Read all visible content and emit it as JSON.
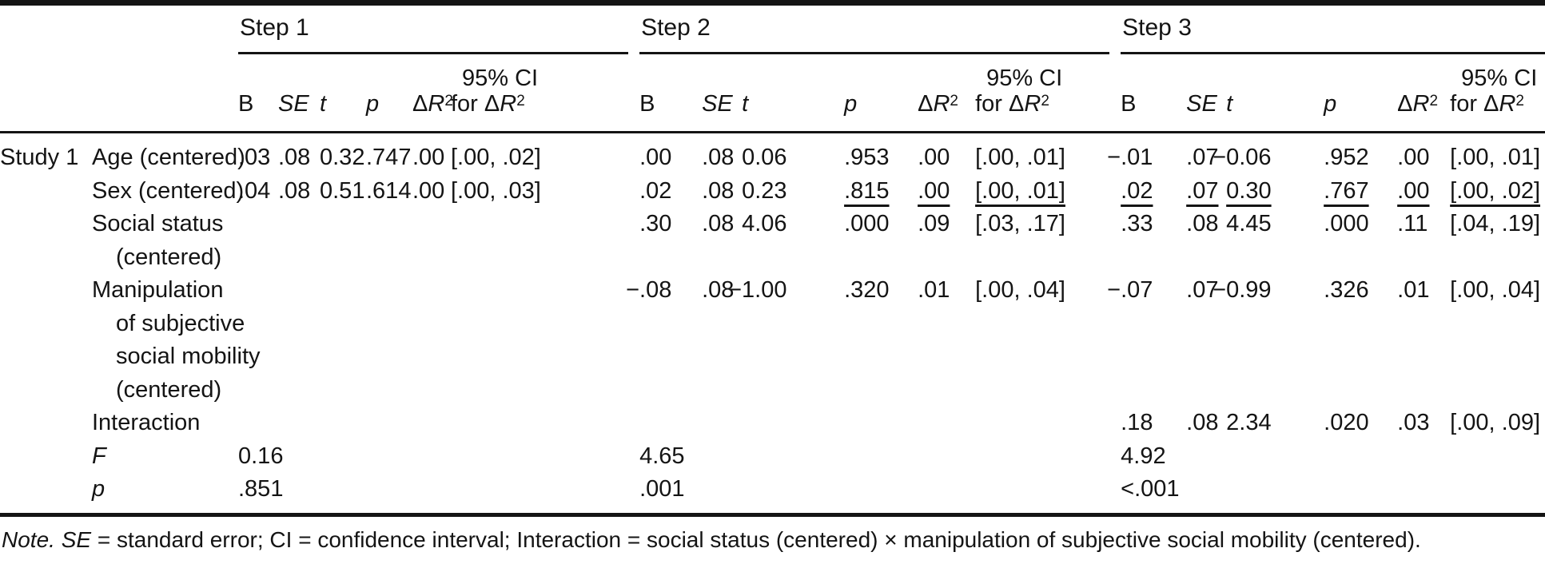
{
  "table": {
    "steps": [
      {
        "label": "Step 1"
      },
      {
        "label": "Step 2"
      },
      {
        "label": "Step 3"
      }
    ],
    "columns": [
      {
        "key": "b",
        "label": "B",
        "italic": false
      },
      {
        "key": "se",
        "label": "SE",
        "italic": true
      },
      {
        "key": "t",
        "label": "t",
        "italic": true
      },
      {
        "key": "p",
        "label": "p",
        "italic": true
      },
      {
        "key": "dr2",
        "label": "ΔR2",
        "italic": false,
        "formatted": true
      },
      {
        "key": "ci",
        "label_lines": [
          "95% CI",
          "for ΔR2"
        ],
        "formatted": true
      }
    ],
    "rows": [
      {
        "study": "Study 1",
        "predictor_lines": [
          "Age (centered)"
        ],
        "predictor_italic": false,
        "steps": [
          {
            "cells": [
              ".03",
              ".08",
              "0.32",
              ".747",
              ".00",
              "[.00, .02]"
            ]
          },
          {
            "cells": [
              ".00",
              ".08",
              "0.06",
              ".953",
              ".00",
              "[.00, .01]"
            ]
          },
          {
            "cells": [
              "−.01",
              ".07",
              "−0.06",
              ".952",
              ".00",
              "[.00, .01]"
            ]
          }
        ]
      },
      {
        "study": "",
        "predictor_lines": [
          "Sex (centered)"
        ],
        "predictor_italic": false,
        "steps": [
          {
            "cells": [
              ".04",
              ".08",
              "0.51",
              ".614",
              ".00",
              "[.00, .03]"
            ]
          },
          {
            "cells": [
              ".02",
              ".08",
              "0.23",
              ".815",
              ".00",
              "[.00, .01]"
            ],
            "underline": [
              false,
              false,
              false,
              true,
              true,
              true
            ]
          },
          {
            "cells": [
              ".02",
              ".07",
              "0.30",
              ".767",
              ".00",
              "[.00, .02]"
            ],
            "underline": [
              true,
              true,
              true,
              true,
              true,
              true
            ]
          }
        ]
      },
      {
        "study": "",
        "predictor_lines": [
          "Social status",
          "(centered)"
        ],
        "predictor_italic": false,
        "steps": [
          {
            "cells": [
              "",
              "",
              "",
              "",
              "",
              ""
            ]
          },
          {
            "cells": [
              ".30",
              ".08",
              "4.06",
              ".000",
              ".09",
              "[.03, .17]"
            ]
          },
          {
            "cells": [
              ".33",
              ".08",
              "4.45",
              ".000",
              ".11",
              "[.04, .19]"
            ]
          }
        ]
      },
      {
        "study": "",
        "predictor_lines": [
          "Manipulation",
          "of subjective",
          "social mobility",
          "(centered)"
        ],
        "predictor_italic": false,
        "steps": [
          {
            "cells": [
              "",
              "",
              "",
              "",
              "",
              ""
            ]
          },
          {
            "cells": [
              "−.08",
              ".08",
              "−1.00",
              ".320",
              ".01",
              "[.00, .04]"
            ]
          },
          {
            "cells": [
              "−.07",
              ".07",
              "−0.99",
              ".326",
              ".01",
              "[.00, .04]"
            ]
          }
        ]
      },
      {
        "study": "",
        "predictor_lines": [
          "Interaction"
        ],
        "predictor_italic": false,
        "steps": [
          {
            "cells": [
              "",
              "",
              "",
              "",
              "",
              ""
            ]
          },
          {
            "cells": [
              "",
              "",
              "",
              "",
              "",
              ""
            ]
          },
          {
            "cells": [
              ".18",
              ".08",
              "2.34",
              ".020",
              ".03",
              "[.00, .09]"
            ]
          }
        ]
      },
      {
        "study": "",
        "predictor_lines": [
          "F"
        ],
        "predictor_italic": true,
        "steps": [
          {
            "cells": [
              "0.16",
              "",
              "",
              "",
              "",
              ""
            ]
          },
          {
            "cells": [
              "4.65",
              "",
              "",
              "",
              "",
              ""
            ]
          },
          {
            "cells": [
              "4.92",
              "",
              "",
              "",
              "",
              ""
            ]
          }
        ]
      },
      {
        "study": "",
        "predictor_lines": [
          "p"
        ],
        "predictor_italic": true,
        "steps": [
          {
            "cells": [
              ".851",
              "",
              "",
              "",
              "",
              ""
            ]
          },
          {
            "cells": [
              ".001",
              "",
              "",
              "",
              "",
              ""
            ]
          },
          {
            "cells": [
              "<.001",
              "",
              "",
              "",
              "",
              ""
            ]
          }
        ]
      }
    ]
  },
  "note": {
    "lead": "Note.",
    "segments": [
      {
        "text": " ",
        "italic": false
      },
      {
        "text": "SE",
        "italic": true
      },
      {
        "text": " = standard error; CI = confidence interval; Interaction = social status (centered) × manipulation of subjective social mobility (centered).",
        "italic": false
      }
    ]
  }
}
